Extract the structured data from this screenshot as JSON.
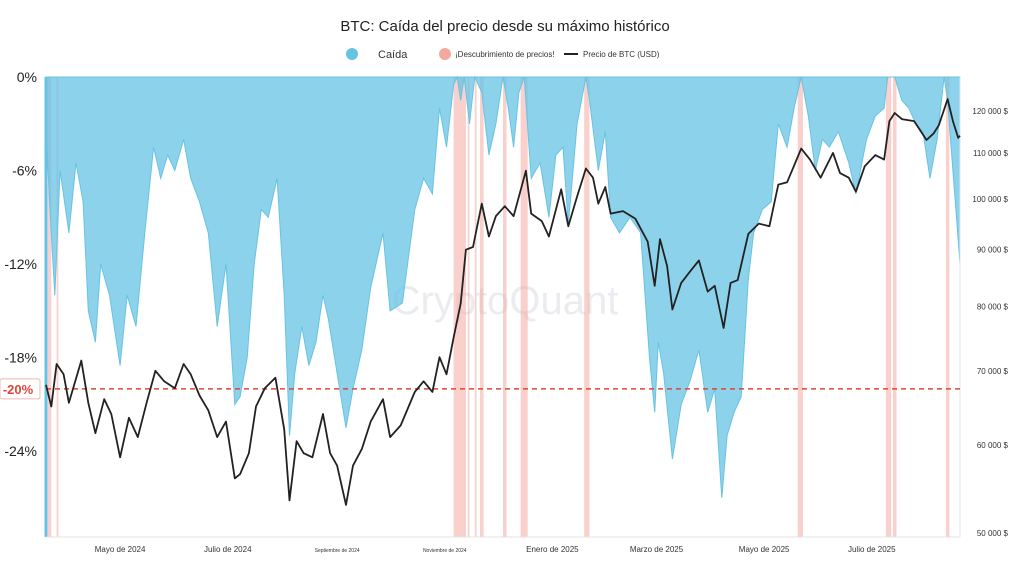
{
  "chart_data": {
    "type": "area",
    "title": "BTC: Caída del precio desde su máximo histórico",
    "watermark": "CryptoQuant",
    "legend": {
      "placement": "top-center",
      "items": [
        {
          "key": "drawdown",
          "label": "Caída",
          "color": "#67c3e4",
          "marker": "dot"
        },
        {
          "key": "discovery",
          "label": "¡Descubrimiento de precios!",
          "color": "#f4a9a0",
          "marker": "dot"
        },
        {
          "key": "price",
          "label": "Precio de BTC (USD)",
          "color": "#222222",
          "marker": "line"
        }
      ]
    },
    "y_left": {
      "ticks": [
        {
          "value": 0,
          "label": "0%"
        },
        {
          "value": -6,
          "label": "-6%"
        },
        {
          "value": -12,
          "label": "-12%"
        },
        {
          "value": -18,
          "label": "-18%"
        },
        {
          "value": -24,
          "label": "-24%"
        }
      ],
      "range": [
        -29.5,
        0
      ]
    },
    "reference_line": {
      "value": -20,
      "label": "-20%",
      "color": "#e0463a",
      "style": "dashed"
    },
    "y_right": {
      "scale": "log",
      "ticks": [
        {
          "value": 50000,
          "label": "50 000 $"
        },
        {
          "value": 60000,
          "label": "60 000 $"
        },
        {
          "value": 70000,
          "label": "70 000 $"
        },
        {
          "value": 80000,
          "label": "80 000 $"
        },
        {
          "value": 90000,
          "label": "90 000 $"
        },
        {
          "value": 100000,
          "label": "100 000 $"
        },
        {
          "value": 110000,
          "label": "110 000 $"
        },
        {
          "value": 120000,
          "label": "120 000 $"
        }
      ]
    },
    "x_axis": {
      "range": [
        "2024-03-20",
        "2025-08-20"
      ],
      "ticks": [
        {
          "date": "2024-05-01",
          "label": "Mayo de 2024",
          "small": false
        },
        {
          "date": "2024-07-01",
          "label": "Julio de 2024",
          "small": false
        },
        {
          "date": "2024-09-01",
          "label": "Septiembre de 2024",
          "small": true
        },
        {
          "date": "2024-11-01",
          "label": "Noviembre de 2024",
          "small": true
        },
        {
          "date": "2025-01-01",
          "label": "Enero de 2025",
          "small": false
        },
        {
          "date": "2025-03-01",
          "label": "Marzo de 2025",
          "small": false
        },
        {
          "date": "2025-05-01",
          "label": "Mayo de 2025",
          "small": false
        },
        {
          "date": "2025-07-01",
          "label": "Julio de 2025",
          "small": false
        }
      ]
    },
    "drawdown_series": [
      [
        "2024-03-20",
        -3.0
      ],
      [
        "2024-03-22",
        -8.0
      ],
      [
        "2024-03-25",
        -14.0
      ],
      [
        "2024-03-28",
        -6.0
      ],
      [
        "2024-04-02",
        -10.0
      ],
      [
        "2024-04-06",
        -5.5
      ],
      [
        "2024-04-10",
        -8.0
      ],
      [
        "2024-04-13",
        -15.0
      ],
      [
        "2024-04-17",
        -17.0
      ],
      [
        "2024-04-20",
        -12.0
      ],
      [
        "2024-04-25",
        -14.0
      ],
      [
        "2024-05-01",
        -18.5
      ],
      [
        "2024-05-05",
        -14.0
      ],
      [
        "2024-05-10",
        -16.0
      ],
      [
        "2024-05-15",
        -10.0
      ],
      [
        "2024-05-20",
        -4.5
      ],
      [
        "2024-05-24",
        -6.5
      ],
      [
        "2024-05-28",
        -5.0
      ],
      [
        "2024-06-01",
        -6.0
      ],
      [
        "2024-06-06",
        -4.0
      ],
      [
        "2024-06-10",
        -6.5
      ],
      [
        "2024-06-15",
        -8.0
      ],
      [
        "2024-06-20",
        -10.0
      ],
      [
        "2024-06-25",
        -16.0
      ],
      [
        "2024-06-30",
        -12.0
      ],
      [
        "2024-07-05",
        -21.0
      ],
      [
        "2024-07-08",
        -20.5
      ],
      [
        "2024-07-12",
        -18.0
      ],
      [
        "2024-07-16",
        -12.0
      ],
      [
        "2024-07-20",
        -8.5
      ],
      [
        "2024-07-24",
        -9.0
      ],
      [
        "2024-07-29",
        -6.5
      ],
      [
        "2024-08-02",
        -14.0
      ],
      [
        "2024-08-05",
        -23.0
      ],
      [
        "2024-08-08",
        -19.0
      ],
      [
        "2024-08-12",
        -16.0
      ],
      [
        "2024-08-16",
        -18.5
      ],
      [
        "2024-08-20",
        -17.0
      ],
      [
        "2024-08-24",
        -14.0
      ],
      [
        "2024-08-27",
        -15.5
      ],
      [
        "2024-09-01",
        -19.0
      ],
      [
        "2024-09-06",
        -22.5
      ],
      [
        "2024-09-10",
        -20.0
      ],
      [
        "2024-09-15",
        -17.5
      ],
      [
        "2024-09-20",
        -13.5
      ],
      [
        "2024-09-27",
        -10.0
      ],
      [
        "2024-10-01",
        -15.0
      ],
      [
        "2024-10-08",
        -14.5
      ],
      [
        "2024-10-15",
        -8.5
      ],
      [
        "2024-10-20",
        -6.5
      ],
      [
        "2024-10-25",
        -7.5
      ],
      [
        "2024-10-29",
        -2.0
      ],
      [
        "2024-11-02",
        -4.5
      ],
      [
        "2024-11-06",
        -0.5
      ],
      [
        "2024-11-08",
        0.0
      ],
      [
        "2024-11-10",
        -1.5
      ],
      [
        "2024-11-12",
        0.0
      ],
      [
        "2024-11-15",
        -3.0
      ],
      [
        "2024-11-18",
        0.0
      ],
      [
        "2024-11-22",
        -1.0
      ],
      [
        "2024-11-26",
        -5.0
      ],
      [
        "2024-11-30",
        -3.0
      ],
      [
        "2024-12-04",
        0.0
      ],
      [
        "2024-12-07",
        -2.0
      ],
      [
        "2024-12-10",
        -4.5
      ],
      [
        "2024-12-13",
        -1.0
      ],
      [
        "2024-12-16",
        0.0
      ],
      [
        "2024-12-20",
        -6.5
      ],
      [
        "2024-12-25",
        -5.5
      ],
      [
        "2024-12-30",
        -9.0
      ],
      [
        "2025-01-03",
        -5.0
      ],
      [
        "2025-01-07",
        -4.5
      ],
      [
        "2025-01-10",
        -9.5
      ],
      [
        "2025-01-15",
        -3.0
      ],
      [
        "2025-01-20",
        0.0
      ],
      [
        "2025-01-22",
        -1.5
      ],
      [
        "2025-01-27",
        -6.0
      ],
      [
        "2025-01-31",
        -3.5
      ],
      [
        "2025-02-03",
        -9.0
      ],
      [
        "2025-02-08",
        -10.0
      ],
      [
        "2025-02-14",
        -9.0
      ],
      [
        "2025-02-20",
        -10.0
      ],
      [
        "2025-02-25",
        -18.0
      ],
      [
        "2025-02-28",
        -21.5
      ],
      [
        "2025-03-02",
        -17.0
      ],
      [
        "2025-03-05",
        -19.0
      ],
      [
        "2025-03-10",
        -24.5
      ],
      [
        "2025-03-15",
        -21.0
      ],
      [
        "2025-03-20",
        -19.5
      ],
      [
        "2025-03-25",
        -17.5
      ],
      [
        "2025-03-30",
        -21.5
      ],
      [
        "2025-04-03",
        -20.0
      ],
      [
        "2025-04-07",
        -27.0
      ],
      [
        "2025-04-10",
        -23.0
      ],
      [
        "2025-04-14",
        -21.5
      ],
      [
        "2025-04-18",
        -20.5
      ],
      [
        "2025-04-22",
        -13.0
      ],
      [
        "2025-04-25",
        -10.0
      ],
      [
        "2025-04-30",
        -8.5
      ],
      [
        "2025-05-05",
        -8.0
      ],
      [
        "2025-05-09",
        -3.0
      ],
      [
        "2025-05-14",
        -4.5
      ],
      [
        "2025-05-18",
        -2.0
      ],
      [
        "2025-05-22",
        0.0
      ],
      [
        "2025-05-26",
        -2.5
      ],
      [
        "2025-05-30",
        -6.0
      ],
      [
        "2025-06-03",
        -4.0
      ],
      [
        "2025-06-07",
        -4.5
      ],
      [
        "2025-06-12",
        -3.5
      ],
      [
        "2025-06-18",
        -5.5
      ],
      [
        "2025-06-22",
        -7.5
      ],
      [
        "2025-06-28",
        -4.0
      ],
      [
        "2025-07-03",
        -2.5
      ],
      [
        "2025-07-08",
        -2.0
      ],
      [
        "2025-07-10",
        0.0
      ],
      [
        "2025-07-14",
        0.0
      ],
      [
        "2025-07-18",
        -1.5
      ],
      [
        "2025-07-22",
        -2.0
      ],
      [
        "2025-07-26",
        -3.0
      ],
      [
        "2025-07-30",
        -3.5
      ],
      [
        "2025-08-03",
        -6.5
      ],
      [
        "2025-08-07",
        -4.0
      ],
      [
        "2025-08-11",
        0.0
      ],
      [
        "2025-08-13",
        -1.5
      ],
      [
        "2025-08-16",
        -6.0
      ],
      [
        "2025-08-18",
        -9.0
      ],
      [
        "2025-08-20",
        -12.0
      ]
    ],
    "price_series": [
      [
        "2024-03-20",
        68000
      ],
      [
        "2024-03-23",
        65000
      ],
      [
        "2024-03-26",
        71000
      ],
      [
        "2024-03-30",
        69500
      ],
      [
        "2024-04-02",
        65500
      ],
      [
        "2024-04-05",
        68000
      ],
      [
        "2024-04-09",
        71500
      ],
      [
        "2024-04-13",
        65500
      ],
      [
        "2024-04-17",
        61500
      ],
      [
        "2024-04-22",
        66000
      ],
      [
        "2024-04-26",
        64000
      ],
      [
        "2024-05-01",
        58500
      ],
      [
        "2024-05-06",
        63500
      ],
      [
        "2024-05-11",
        61000
      ],
      [
        "2024-05-16",
        65500
      ],
      [
        "2024-05-21",
        70000
      ],
      [
        "2024-05-26",
        68500
      ],
      [
        "2024-06-01",
        67500
      ],
      [
        "2024-06-06",
        71000
      ],
      [
        "2024-06-10",
        69500
      ],
      [
        "2024-06-15",
        66500
      ],
      [
        "2024-06-20",
        64500
      ],
      [
        "2024-06-25",
        61000
      ],
      [
        "2024-06-30",
        63000
      ],
      [
        "2024-07-05",
        56000
      ],
      [
        "2024-07-08",
        56500
      ],
      [
        "2024-07-13",
        59000
      ],
      [
        "2024-07-17",
        65000
      ],
      [
        "2024-07-22",
        67500
      ],
      [
        "2024-07-28",
        69000
      ],
      [
        "2024-08-02",
        62000
      ],
      [
        "2024-08-05",
        53500
      ],
      [
        "2024-08-09",
        60500
      ],
      [
        "2024-08-13",
        59000
      ],
      [
        "2024-08-18",
        58500
      ],
      [
        "2024-08-24",
        64000
      ],
      [
        "2024-08-28",
        59000
      ],
      [
        "2024-09-01",
        57500
      ],
      [
        "2024-09-06",
        53000
      ],
      [
        "2024-09-10",
        57500
      ],
      [
        "2024-09-15",
        59500
      ],
      [
        "2024-09-20",
        63000
      ],
      [
        "2024-09-27",
        66000
      ],
      [
        "2024-10-01",
        61000
      ],
      [
        "2024-10-07",
        62500
      ],
      [
        "2024-10-15",
        67000
      ],
      [
        "2024-10-20",
        68500
      ],
      [
        "2024-10-25",
        67000
      ],
      [
        "2024-10-29",
        72000
      ],
      [
        "2024-11-02",
        69500
      ],
      [
        "2024-11-06",
        75000
      ],
      [
        "2024-11-10",
        80500
      ],
      [
        "2024-11-13",
        90000
      ],
      [
        "2024-11-17",
        90500
      ],
      [
        "2024-11-22",
        99000
      ],
      [
        "2024-11-26",
        92500
      ],
      [
        "2024-11-30",
        96500
      ],
      [
        "2024-12-05",
        98500
      ],
      [
        "2024-12-10",
        96500
      ],
      [
        "2024-12-17",
        106000
      ],
      [
        "2024-12-20",
        97000
      ],
      [
        "2024-12-26",
        95500
      ],
      [
        "2024-12-30",
        92500
      ],
      [
        "2025-01-06",
        102000
      ],
      [
        "2025-01-10",
        94500
      ],
      [
        "2025-01-15",
        100500
      ],
      [
        "2025-01-20",
        106500
      ],
      [
        "2025-01-24",
        104500
      ],
      [
        "2025-01-27",
        99000
      ],
      [
        "2025-01-31",
        102500
      ],
      [
        "2025-02-03",
        97000
      ],
      [
        "2025-02-10",
        97500
      ],
      [
        "2025-02-17",
        96000
      ],
      [
        "2025-02-24",
        91500
      ],
      [
        "2025-02-28",
        83500
      ],
      [
        "2025-03-03",
        92000
      ],
      [
        "2025-03-07",
        87000
      ],
      [
        "2025-03-10",
        79500
      ],
      [
        "2025-03-15",
        84000
      ],
      [
        "2025-03-20",
        86000
      ],
      [
        "2025-03-25",
        88000
      ],
      [
        "2025-03-30",
        82500
      ],
      [
        "2025-04-03",
        83500
      ],
      [
        "2025-04-08",
        76500
      ],
      [
        "2025-04-12",
        84000
      ],
      [
        "2025-04-16",
        84500
      ],
      [
        "2025-04-22",
        93000
      ],
      [
        "2025-04-28",
        95000
      ],
      [
        "2025-05-04",
        94500
      ],
      [
        "2025-05-09",
        103000
      ],
      [
        "2025-05-14",
        103500
      ],
      [
        "2025-05-22",
        111000
      ],
      [
        "2025-05-27",
        108500
      ],
      [
        "2025-06-02",
        104500
      ],
      [
        "2025-06-09",
        110000
      ],
      [
        "2025-06-13",
        105500
      ],
      [
        "2025-06-18",
        104500
      ],
      [
        "2025-06-22",
        101500
      ],
      [
        "2025-06-27",
        107000
      ],
      [
        "2025-07-03",
        109500
      ],
      [
        "2025-07-08",
        108500
      ],
      [
        "2025-07-11",
        117500
      ],
      [
        "2025-07-14",
        119500
      ],
      [
        "2025-07-18",
        118000
      ],
      [
        "2025-07-25",
        117500
      ],
      [
        "2025-08-01",
        113000
      ],
      [
        "2025-08-05",
        114500
      ],
      [
        "2025-08-08",
        116500
      ],
      [
        "2025-08-13",
        123000
      ],
      [
        "2025-08-16",
        117500
      ],
      [
        "2025-08-19",
        113500
      ],
      [
        "2025-08-20",
        114000
      ]
    ],
    "discovery_periods": [
      [
        "2024-03-21",
        "2024-03-23"
      ],
      [
        "2024-03-26",
        "2024-03-27"
      ],
      [
        "2024-11-06",
        "2024-11-13"
      ],
      [
        "2024-11-14",
        "2024-11-15"
      ],
      [
        "2024-11-18",
        "2024-11-19"
      ],
      [
        "2024-11-21",
        "2024-11-23"
      ],
      [
        "2024-12-04",
        "2024-12-06"
      ],
      [
        "2024-12-14",
        "2024-12-18"
      ],
      [
        "2025-01-19",
        "2025-01-22"
      ],
      [
        "2025-05-20",
        "2025-05-23"
      ],
      [
        "2025-07-09",
        "2025-07-12"
      ],
      [
        "2025-07-13",
        "2025-07-15"
      ],
      [
        "2025-08-12",
        "2025-08-14"
      ]
    ]
  }
}
